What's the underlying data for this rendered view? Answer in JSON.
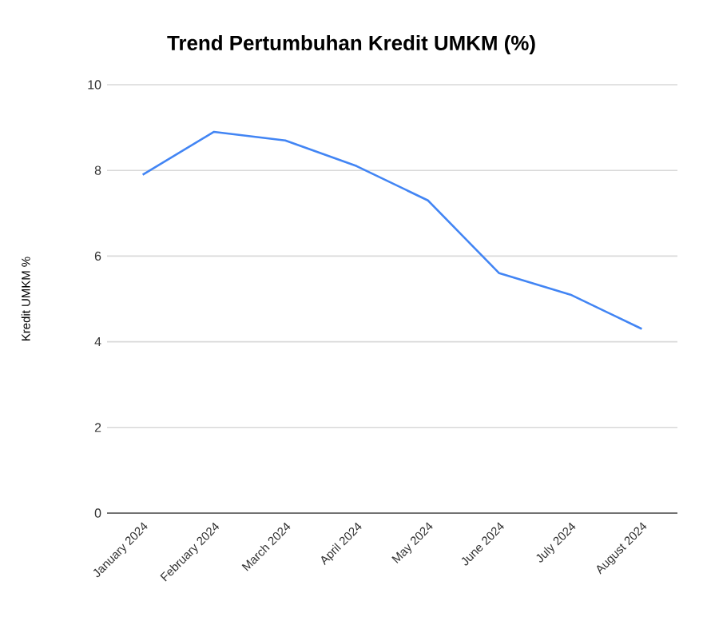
{
  "chart_data": {
    "type": "line",
    "title": "Trend Pertumbuhan Kredit UMKM  (%)",
    "ylabel": "Kredit UMKM %",
    "categories": [
      "January 2024",
      "February 2024",
      "March 2024",
      "April 2024",
      "May 2024",
      "June 2024",
      "July 2024",
      "August 2024"
    ],
    "series": [
      {
        "color": "#4285f4",
        "values": [
          7.9,
          8.9,
          8.7,
          8.1,
          7.3,
          5.6,
          5.1,
          4.3
        ]
      }
    ],
    "ylim": [
      0,
      10
    ],
    "yticks": [
      0,
      2,
      4,
      6,
      8,
      10
    ],
    "grid": "y",
    "marker": "none",
    "line_style": "solid"
  }
}
